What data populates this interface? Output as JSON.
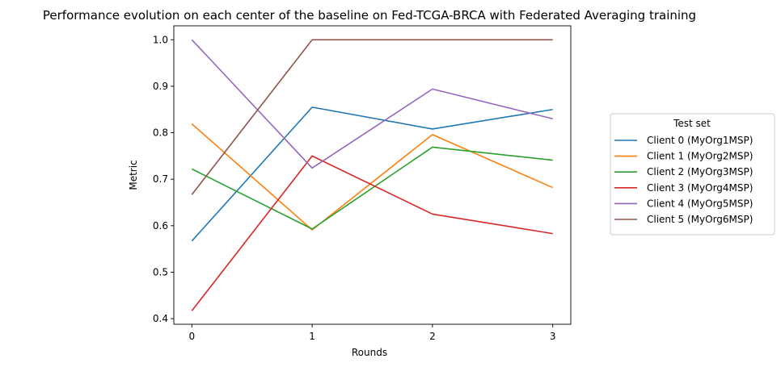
{
  "chart_data": {
    "type": "line",
    "title": "Performance evolution on each center of the baseline on Fed-TCGA-BRCA with Federated Averaging training",
    "xlabel": "Rounds",
    "ylabel": "Metric",
    "x": [
      0,
      1,
      2,
      3
    ],
    "xticks": [
      "0",
      "1",
      "2",
      "3"
    ],
    "yticks": [
      "0.4",
      "0.5",
      "0.6",
      "0.7",
      "0.8",
      "0.9",
      "1.0"
    ],
    "xlim": [
      -0.15,
      3.15
    ],
    "ylim": [
      0.388,
      1.03
    ],
    "grid": false,
    "legend_title": "Test set",
    "legend_position": "outside-right",
    "series": [
      {
        "name": "Client 0 (MyOrg1MSP)",
        "color": "#1f77b4",
        "values": [
          0.567,
          0.855,
          0.808,
          0.85
        ]
      },
      {
        "name": "Client 1 (MyOrg2MSP)",
        "color": "#ff7f0e",
        "values": [
          0.819,
          0.591,
          0.796,
          0.682
        ]
      },
      {
        "name": "Client 2 (MyOrg3MSP)",
        "color": "#2ca02c",
        "values": [
          0.722,
          0.593,
          0.769,
          0.741
        ]
      },
      {
        "name": "Client 3 (MyOrg4MSP)",
        "color": "#d62728",
        "values": [
          0.417,
          0.75,
          0.625,
          0.583
        ]
      },
      {
        "name": "Client 4 (MyOrg5MSP)",
        "color": "#9467bd",
        "values": [
          1.0,
          0.724,
          0.894,
          0.83
        ]
      },
      {
        "name": "Client 5 (MyOrg6MSP)",
        "color": "#8c564b",
        "values": [
          0.667,
          1.0,
          1.0,
          1.0
        ]
      }
    ]
  }
}
